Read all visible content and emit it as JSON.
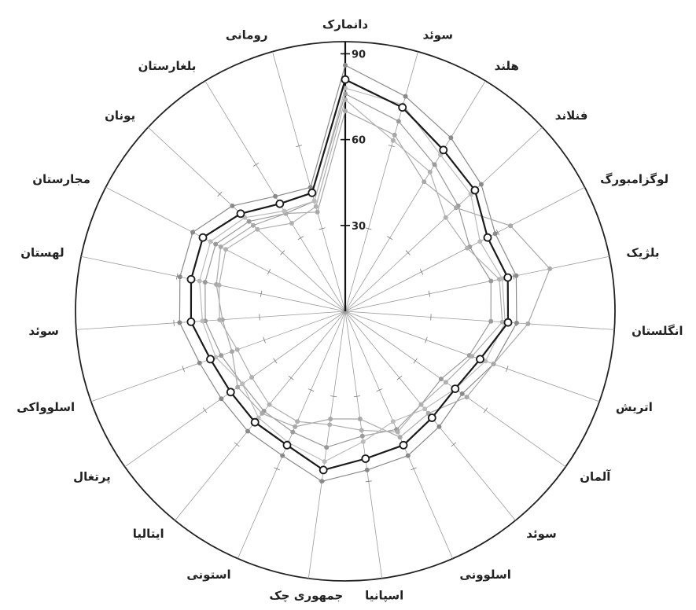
{
  "chart_data": {
    "type": "radar",
    "title": "",
    "r_ticks": [
      "30",
      "60",
      "90"
    ],
    "rlim": [
      0,
      90
    ],
    "grid": true,
    "legend": "none",
    "categories": [
      "دانمارک",
      "سوئد",
      "هلند",
      "فنلاند",
      "لوگزامبورگ",
      "بلژیک",
      "انگلستان",
      "اتریش",
      "آلمان",
      "سوئد",
      "اسلوونی",
      "اسپانیا",
      "جمهوری چک",
      "استونی",
      "ایتالیا",
      "پرتغال",
      "اسلوواکی",
      "سوئد",
      "لهستان",
      "مجارستان",
      "یونان",
      "بلغارستان",
      "رومانی"
    ],
    "series": [
      {
        "values": [
          81,
          74,
          66,
          62,
          56,
          58,
          57,
          50,
          47,
          48,
          51,
          52,
          56,
          51,
          50,
          49,
          50,
          54,
          55,
          56,
          50,
          44,
          43
        ],
        "style": "highlight",
        "color": "#1a1a1a"
      },
      {
        "values": [
          86,
          78,
          71,
          65,
          59,
          61,
          60,
          55,
          50,
          52,
          55,
          56,
          60,
          55,
          54,
          53,
          54,
          58,
          59,
          60,
          54,
          47,
          45
        ],
        "style": "context",
        "color": "#8a8a8a"
      },
      {
        "values": [
          76,
          69,
          60,
          54,
          49,
          52,
          51,
          46,
          41,
          42,
          45,
          44,
          48,
          46,
          45,
          44,
          46,
          49,
          50,
          51,
          46,
          40,
          40
        ],
        "style": "context",
        "color": "#9a9a9a"
      },
      {
        "values": [
          70,
          64,
          53,
          53,
          65,
          73,
          64,
          55,
          52,
          46,
          48,
          38,
          38,
          44,
          46,
          46,
          42,
          43,
          46,
          49,
          44,
          40,
          36
        ],
        "style": "context",
        "color": "#a8a8a8"
      },
      {
        "values": [
          74,
          62,
          57,
          48,
          48,
          55,
          55,
          47,
          43,
          42,
          46,
          42,
          40,
          42,
          42,
          40,
          40,
          44,
          45,
          47,
          42,
          36,
          38
        ],
        "style": "context",
        "color": "#b0b0b0"
      },
      {
        "values": [
          78,
          75,
          64,
          60,
          53,
          56,
          56,
          52,
          47,
          44,
          42,
          46,
          53,
          50,
          48,
          44,
          48,
          50,
          52,
          53,
          48,
          41,
          40
        ],
        "style": "context",
        "color": "#bbbbbb"
      }
    ]
  }
}
